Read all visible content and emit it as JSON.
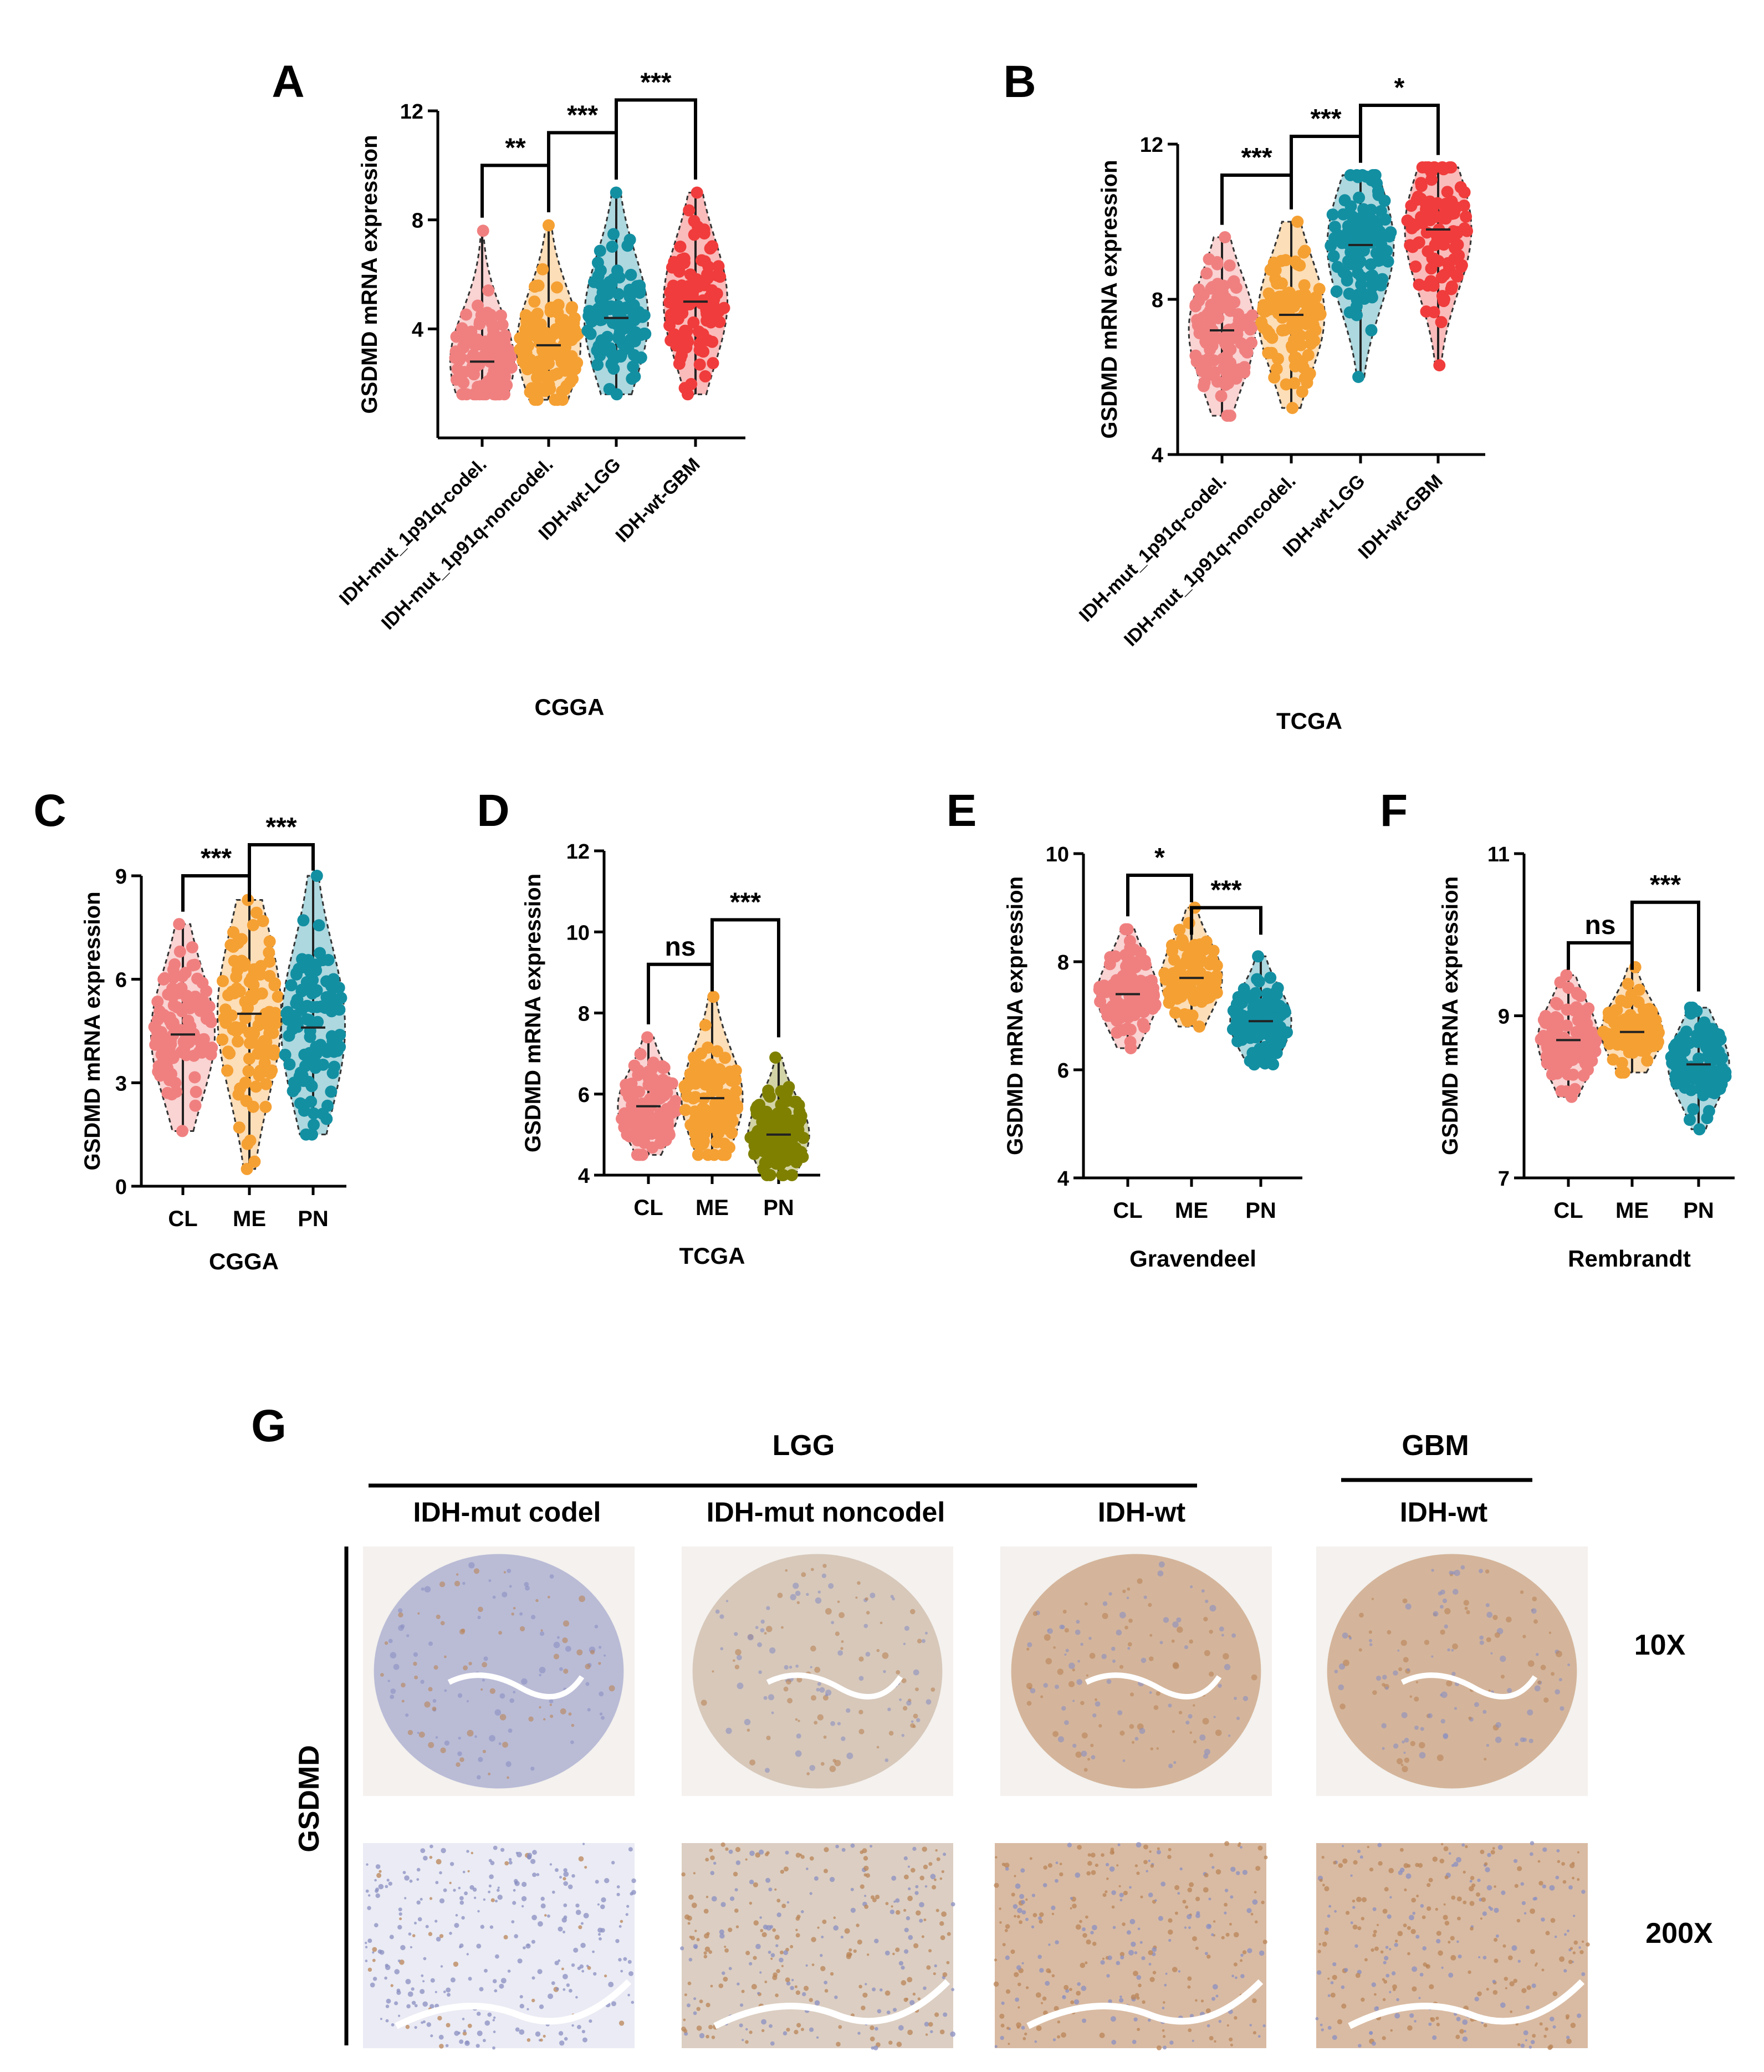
{
  "chart_data": [
    {
      "panel": "A",
      "type": "violin-scatter",
      "ylabel": "GSDMD mRNA expression",
      "xlabel": "CGGA",
      "ylim": [
        0,
        12
      ],
      "yticks": [
        4,
        8,
        12
      ],
      "categories": [
        "IDH-mut_1p91q-codel.",
        "IDH-mut_1p91q-noncodel.",
        "IDH-wt-LGG",
        "IDH-wt-GBM"
      ],
      "colors": [
        "#F08080",
        "#F5A033",
        "#138FA2",
        "#F03C3C"
      ],
      "groups": [
        {
          "min": 1.6,
          "max": 7.6,
          "median": 2.8
        },
        {
          "min": 1.4,
          "max": 7.8,
          "median": 3.4
        },
        {
          "min": 1.6,
          "max": 9.0,
          "median": 4.4
        },
        {
          "min": 1.6,
          "max": 9.0,
          "median": 5.0
        }
      ],
      "comparisons": [
        {
          "from": 0,
          "to": 1,
          "label": "**",
          "level": 10.0
        },
        {
          "from": 1,
          "to": 2,
          "label": "***",
          "level": 11.2
        },
        {
          "from": 2,
          "to": 3,
          "label": "***",
          "level": 12.4
        }
      ]
    },
    {
      "panel": "B",
      "type": "violin-scatter",
      "ylabel": "GSDMD mRNA expression",
      "xlabel": "TCGA",
      "ylim": [
        4,
        12
      ],
      "yticks": [
        4,
        8,
        12
      ],
      "categories": [
        "IDH-mut_1p91q-codel.",
        "IDH-mut_1p91q-noncodel.",
        "IDH-wt-LGG",
        "IDH-wt-GBM"
      ],
      "colors": [
        "#F08080",
        "#F5A033",
        "#138FA2",
        "#F03C3C"
      ],
      "groups": [
        {
          "min": 5.0,
          "max": 9.6,
          "median": 7.2
        },
        {
          "min": 5.2,
          "max": 10.0,
          "median": 7.6
        },
        {
          "min": 6.0,
          "max": 11.2,
          "median": 9.4
        },
        {
          "min": 6.3,
          "max": 11.4,
          "median": 9.8
        }
      ],
      "comparisons": [
        {
          "from": 0,
          "to": 1,
          "label": "***",
          "level": 11.2
        },
        {
          "from": 1,
          "to": 2,
          "label": "***",
          "level": 12.2
        },
        {
          "from": 2,
          "to": 3,
          "label": "*",
          "level": 13.0
        }
      ]
    },
    {
      "panel": "C",
      "type": "violin-scatter",
      "ylabel": "GSDMD mRNA expression",
      "xlabel": "CGGA",
      "ylim": [
        0,
        9
      ],
      "yticks": [
        0,
        3,
        6,
        9
      ],
      "categories": [
        "CL",
        "ME",
        "PN"
      ],
      "colors": [
        "#F08080",
        "#F5A033",
        "#138FA2"
      ],
      "groups": [
        {
          "min": 1.6,
          "max": 7.6,
          "median": 4.4
        },
        {
          "min": 0.5,
          "max": 8.3,
          "median": 5.0
        },
        {
          "min": 1.5,
          "max": 9.0,
          "median": 4.6
        }
      ],
      "comparisons": [
        {
          "from": 0,
          "to": 1,
          "label": "***",
          "level": 9.0
        },
        {
          "from": 1,
          "to": 2,
          "label": "***",
          "level": 9.9
        }
      ]
    },
    {
      "panel": "D",
      "type": "violin-scatter",
      "ylabel": "GSDMD mRNA expression",
      "xlabel": "TCGA",
      "ylim": [
        4,
        12
      ],
      "yticks": [
        4,
        6,
        8,
        10,
        12
      ],
      "categories": [
        "CL",
        "ME",
        "PN"
      ],
      "colors": [
        "#F08080",
        "#F5A033",
        "#7F8000"
      ],
      "groups": [
        {
          "min": 4.5,
          "max": 7.4,
          "median": 5.7
        },
        {
          "min": 4.5,
          "max": 8.4,
          "median": 5.9
        },
        {
          "min": 4.0,
          "max": 6.9,
          "median": 5.0
        }
      ],
      "comparisons": [
        {
          "from": 0,
          "to": 1,
          "label": "ns",
          "level": 9.2
        },
        {
          "from": 1,
          "to": 2,
          "label": "***",
          "level": 10.3,
          "drop_to": 7.4
        }
      ]
    },
    {
      "panel": "E",
      "type": "violin-scatter",
      "ylabel": "GSDMD mRNA expression",
      "xlabel": "Gravendeel",
      "ylim": [
        4,
        10
      ],
      "yticks": [
        4,
        6,
        8,
        10
      ],
      "categories": [
        "CL",
        "ME",
        "PN"
      ],
      "colors": [
        "#F08080",
        "#F5A033",
        "#138FA2"
      ],
      "groups": [
        {
          "min": 6.4,
          "max": 8.6,
          "median": 7.4
        },
        {
          "min": 6.8,
          "max": 9.0,
          "median": 7.7
        },
        {
          "min": 6.1,
          "max": 8.1,
          "median": 6.9
        }
      ],
      "comparisons": [
        {
          "from": 0,
          "to": 1,
          "label": "*",
          "level": 9.6
        },
        {
          "from": 1,
          "to": 2,
          "label": "***",
          "level": 9.0,
          "drop_to": 8.5
        }
      ]
    },
    {
      "panel": "F",
      "type": "violin-scatter",
      "ylabel": "GSDMD mRNA expression",
      "xlabel": "Rembrandt",
      "ylim": [
        7,
        11
      ],
      "yticks": [
        7,
        9,
        11
      ],
      "categories": [
        "CL",
        "ME",
        "PN"
      ],
      "colors": [
        "#F08080",
        "#F5A033",
        "#138FA2"
      ],
      "groups": [
        {
          "min": 8.0,
          "max": 9.5,
          "median": 8.7
        },
        {
          "min": 8.3,
          "max": 9.6,
          "median": 8.8
        },
        {
          "min": 7.6,
          "max": 9.1,
          "median": 8.4
        }
      ],
      "comparisons": [
        {
          "from": 0,
          "to": 1,
          "label": "ns",
          "level": 9.9
        },
        {
          "from": 1,
          "to": 2,
          "label": "***",
          "level": 10.4,
          "drop_to": 9.3
        }
      ]
    }
  ],
  "panel_g": {
    "panel": "G",
    "lgg_label": "LGG",
    "gbm_label": "GBM",
    "stain_label": "GSDMD",
    "columns": [
      "IDH-mut codel",
      "IDH-mut noncodel",
      "IDH-wt",
      "IDH-wt"
    ],
    "magnifications": [
      "10X",
      "200X"
    ],
    "tissue_colors": {
      "background": "#f4f1ee",
      "blue_stain": "#8a8fc2",
      "brown_stain": "#b98457",
      "mixed_stain": "#c0a690"
    }
  }
}
